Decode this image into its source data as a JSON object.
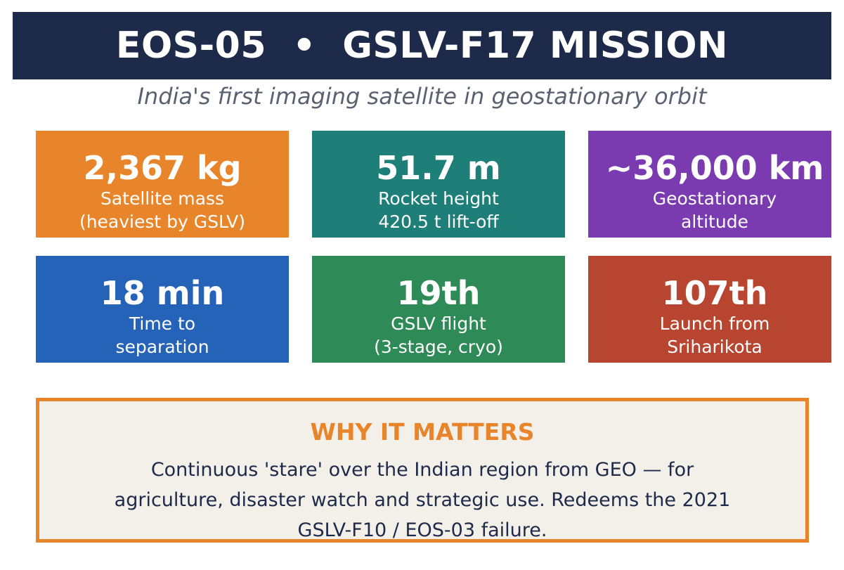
{
  "header": {
    "title": "EOS-05  •  GSLV-F17 MISSION",
    "subtitle": "India's first imaging satellite in geostationary orbit"
  },
  "stats": [
    {
      "value": "2,367 kg",
      "label": "Satellite mass\n(heaviest by GSLV)",
      "color": "#e8852b"
    },
    {
      "value": "51.7 m",
      "label": "Rocket height\n420.5 t lift-off",
      "color": "#1e7f78"
    },
    {
      "value": "~36,000 km",
      "label": "Geostationary\naltitude",
      "color": "#7b3bb0"
    },
    {
      "value": "18 min",
      "label": "Time to\nseparation",
      "color": "#2563b8"
    },
    {
      "value": "19th",
      "label": "GSLV flight\n(3-stage, cryo)",
      "color": "#2e8a56"
    },
    {
      "value": "107th",
      "label": "Launch from\nSriharikota",
      "color": "#b84530"
    }
  ],
  "why": {
    "title": "WHY IT MATTERS",
    "body": "Continuous 'stare' over the Indian region from GEO — for agriculture, disaster watch and strategic use. Redeems the 2021 GSLV-F10 / EOS-03 failure.",
    "border_color": "#e8852b"
  }
}
